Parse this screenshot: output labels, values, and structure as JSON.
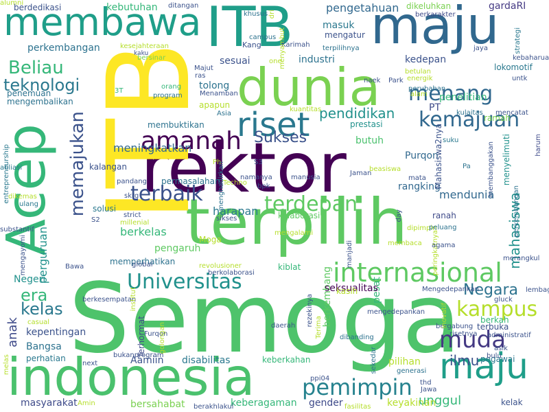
{
  "wordcloud": {
    "words": [
      {
        "text": "Semoga",
        "color": "#4ec36b"
      },
      {
        "text": "rektor",
        "color": "#440154"
      },
      {
        "text": "terpilih",
        "color": "#5ec962"
      },
      {
        "text": "ITB",
        "color": "#fde725"
      },
      {
        "text": "ITB",
        "color": "#1f9e89"
      },
      {
        "text": "Acep",
        "color": "#35b779"
      },
      {
        "text": "indonesia",
        "color": "#4ac16d"
      },
      {
        "text": "dunia",
        "color": "#7ad151"
      },
      {
        "text": "maju",
        "color": "#31688e"
      },
      {
        "text": "membawa",
        "color": "#1f9e89"
      },
      {
        "text": "maju",
        "color": "#1f9e89"
      },
      {
        "text": "riset",
        "color": "#2a788e"
      },
      {
        "text": "amanah",
        "color": "#440154"
      },
      {
        "text": "internasional",
        "color": "#5ec962"
      },
      {
        "text": "Universitas",
        "color": "#21918c"
      },
      {
        "text": "pemimpin",
        "color": "#26828e"
      },
      {
        "text": "muda",
        "color": "#443983"
      },
      {
        "text": "kemajuan",
        "color": "#31688e"
      },
      {
        "text": "menang",
        "color": "#31688e"
      },
      {
        "text": "terbaik",
        "color": "#3b528b"
      },
      {
        "text": "terdepan",
        "color": "#5ec962"
      },
      {
        "text": "kampus",
        "color": "#b5de2b"
      },
      {
        "text": "Beliau",
        "color": "#35b779"
      },
      {
        "text": "memajukan",
        "color": "#3b528b"
      },
      {
        "text": "Sukses",
        "color": "#3b528b"
      },
      {
        "text": "teknologi",
        "color": "#2a788e"
      },
      {
        "text": "pendidikan",
        "color": "#21918c"
      },
      {
        "text": "mahasiswa",
        "color": "#21918c"
      },
      {
        "text": "Negara",
        "color": "#2c728e"
      },
      {
        "text": "era",
        "color": "#35b779"
      },
      {
        "text": "kelas",
        "color": "#2a788e"
      },
      {
        "text": "anak",
        "color": "#3e4a89"
      },
      {
        "text": "ilmu",
        "color": "#3b528b"
      },
      {
        "text": "unggul",
        "color": "#35b779"
      },
      {
        "text": "pengetahuan",
        "color": "#31688e"
      },
      {
        "text": "meningkatkan",
        "color": "#31688e"
      },
      {
        "text": "harapan",
        "color": "#2a788e"
      },
      {
        "text": "berkelas",
        "color": "#35b779"
      },
      {
        "text": "perguruan",
        "color": "#21918c"
      },
      {
        "text": "mendunia",
        "color": "#31688e"
      },
      {
        "text": "rangking",
        "color": "#31688e"
      },
      {
        "text": "kedepan",
        "color": "#3b528b"
      },
      {
        "text": "penelitian",
        "color": "#35b779"
      },
      {
        "text": "industri",
        "color": "#2c728e"
      },
      {
        "text": "sesuai",
        "color": "#3b528b"
      },
      {
        "text": "Purqon",
        "color": "#31688e"
      },
      {
        "text": "butuh",
        "color": "#4ac16d"
      },
      {
        "text": "prestasi",
        "color": "#21918c"
      },
      {
        "text": "PT",
        "color": "#3e4a89"
      },
      {
        "text": "pengaruh",
        "color": "#5ec962"
      },
      {
        "text": "kepentingan",
        "color": "#3b528b"
      },
      {
        "text": "Bangsa",
        "color": "#2c728e"
      },
      {
        "text": "Negeri",
        "color": "#21918c"
      },
      {
        "text": "memperhatikan",
        "color": "#2c728e"
      },
      {
        "text": "berkembang",
        "color": "#5ec962"
      },
      {
        "text": "pesat",
        "color": "#35b779"
      },
      {
        "text": "seksualitas",
        "color": "#440154"
      },
      {
        "text": "Aamiin",
        "color": "#3b528b"
      },
      {
        "text": "disabilitas",
        "color": "#2a788e"
      },
      {
        "text": "keberkahan",
        "color": "#35b779"
      },
      {
        "text": "masyarakat",
        "color": "#3e4a89"
      },
      {
        "text": "keberagaman",
        "color": "#35b779"
      },
      {
        "text": "bersahabat",
        "color": "#7ad151"
      },
      {
        "text": "keyakinan",
        "color": "#b5de2b"
      },
      {
        "text": "gender",
        "color": "#3e4a89"
      },
      {
        "text": "pilihan",
        "color": "#b5de2b"
      },
      {
        "text": "perhatian",
        "color": "#2a788e"
      },
      {
        "text": "mengembalikan",
        "color": "#2c728e"
      },
      {
        "text": "penemuan",
        "color": "#2c728e"
      },
      {
        "text": "perkembangan",
        "color": "#2c728e"
      },
      {
        "text": "berdedikasi",
        "color": "#3b528b"
      },
      {
        "text": "kebutuhan",
        "color": "#35b779"
      },
      {
        "text": "gardaRI",
        "color": "#443983"
      },
      {
        "text": "tolong",
        "color": "#2c728e"
      },
      {
        "text": "Kang",
        "color": "#3b528b"
      },
      {
        "text": "masuk",
        "color": "#2a788e"
      },
      {
        "text": "mengatur",
        "color": "#3b528b"
      },
      {
        "text": "lokomotif",
        "color": "#2a788e"
      },
      {
        "text": "membuktikan",
        "color": "#2c728e"
      },
      {
        "text": "kalangan",
        "color": "#3b528b"
      },
      {
        "text": "permasalahan",
        "color": "#2c728e"
      },
      {
        "text": "solusi",
        "color": "#2a788e"
      },
      {
        "text": "kolaborasi",
        "color": "#5ec962"
      },
      {
        "text": "ranah",
        "color": "#3e4a89"
      },
      {
        "text": "kiblat",
        "color": "#35b779"
      },
      {
        "text": "kasih",
        "color": "#b5de2b"
      },
      {
        "text": "menyelimuti",
        "color": "#21918c"
      },
      {
        "text": "ramah",
        "color": "#7ad151"
      },
      {
        "text": "berkah",
        "color": "#35b779"
      },
      {
        "text": "terbuka",
        "color": "#3b528b"
      },
      {
        "text": "pegawai",
        "color": "#2a788e"
      },
      {
        "text": "kelak",
        "color": "#3b528b"
      },
      {
        "text": "apapun",
        "color": "#b5de2b"
      },
      {
        "text": "Moga",
        "color": "#b5de2b"
      },
      {
        "text": "Terhormat",
        "color": "#3e4a89"
      },
      {
        "text": "Mahasiswa2nya",
        "color": "#3b528b"
      },
      {
        "text": "ditangan",
        "color": "#3b528b"
      },
      {
        "text": "dikeluhkan",
        "color": "#7ad151"
      },
      {
        "text": "berkarakter",
        "color": "#3e4a89"
      },
      {
        "text": "khusus",
        "color": "#2c728e"
      },
      {
        "text": "campus",
        "color": "#2c728e"
      },
      {
        "text": "kesejahteraan",
        "color": "#b5de2b"
      },
      {
        "text": "kaku",
        "color": "#3b528b"
      },
      {
        "text": "bersinar",
        "color": "#7ad151"
      },
      {
        "text": "Karimah",
        "color": "#3b528b"
      },
      {
        "text": "terpilihnya",
        "color": "#2c728e"
      },
      {
        "text": "jaya",
        "color": "#3b528b"
      },
      {
        "text": "kebaharuan",
        "color": "#3b528b"
      },
      {
        "text": "strategi",
        "color": "#2a788e"
      },
      {
        "text": "betulan",
        "color": "#b5de2b"
      },
      {
        "text": "energik",
        "color": "#b5de2b"
      },
      {
        "text": "untk",
        "color": "#3b528b"
      },
      {
        "text": "perubahan",
        "color": "#2c728e"
      },
      {
        "text": "kulaitas",
        "color": "#2c728e"
      },
      {
        "text": "mencatat",
        "color": "#3b528b"
      },
      {
        "text": "suku",
        "color": "#2a788e"
      },
      {
        "text": "harum",
        "color": "#3e4a89"
      },
      {
        "text": "kuantitas",
        "color": "#b5de2b"
      },
      {
        "text": "Asia",
        "color": "#2c728e"
      },
      {
        "text": "orang",
        "color": "#35b779"
      },
      {
        "text": "program",
        "color": "#2c728e"
      },
      {
        "text": "Menamban",
        "color": "#3b528b"
      },
      {
        "text": "Majut",
        "color": "#3b528b"
      },
      {
        "text": "ras",
        "color": "#3b528b"
      },
      {
        "text": "3T",
        "color": "#35b779"
      },
      {
        "text": "one",
        "color": "#b5de2b"
      },
      {
        "text": "naek",
        "color": "#3b528b"
      },
      {
        "text": "Park",
        "color": "#3b528b"
      },
      {
        "text": "alam",
        "color": "#b5de2b"
      },
      {
        "text": "beasiswa",
        "color": "#b5de2b"
      },
      {
        "text": "Jaman",
        "color": "#3b528b"
      },
      {
        "text": "S3",
        "color": "#3b528b"
      },
      {
        "text": "Ph",
        "color": "#b5de2b"
      },
      {
        "text": "manusia",
        "color": "#3b528b"
      },
      {
        "text": "namanya",
        "color": "#3b528b"
      },
      {
        "text": "bpk",
        "color": "#3b528b"
      },
      {
        "text": "mata",
        "color": "#3b528b"
      },
      {
        "text": "Pa",
        "color": "#2c728e"
      },
      {
        "text": "membanggakan",
        "color": "#3b528b"
      },
      {
        "text": "perkembangan",
        "color": "#2c728e"
      },
      {
        "text": "afiliasi",
        "color": "#2a788e"
      },
      {
        "text": "entrepreneurship",
        "color": "#2a788e"
      },
      {
        "text": "dikemas",
        "color": "#b5de2b"
      },
      {
        "text": "ulang",
        "color": "#2a788e"
      },
      {
        "text": "substantif",
        "color": "#3b528b"
      },
      {
        "text": "pandang",
        "color": "#3b528b"
      },
      {
        "text": "skrg",
        "color": "#3b528b"
      },
      {
        "text": "menghadirkan",
        "color": "#2c728e"
      },
      {
        "text": "Techno",
        "color": "#b5de2b"
      },
      {
        "text": "S2",
        "color": "#3b528b"
      },
      {
        "text": "strict",
        "color": "#3b528b"
      },
      {
        "text": "millenial",
        "color": "#b5de2b"
      },
      {
        "text": "sikses",
        "color": "#3b528b"
      },
      {
        "text": "mengayomi",
        "color": "#3b528b"
      },
      {
        "text": "mengalami",
        "color": "#b5de2b"
      },
      {
        "text": "day",
        "color": "#3b528b"
      },
      {
        "text": "dipimpin",
        "color": "#b5de2b"
      },
      {
        "text": "peringkatnya",
        "color": "#b5de2b"
      },
      {
        "text": "peluang",
        "color": "#2c728e"
      },
      {
        "text": "membaca",
        "color": "#b5de2b"
      },
      {
        "text": "agama",
        "color": "#3b528b"
      },
      {
        "text": "manjadi",
        "color": "#3b528b"
      },
      {
        "text": "merangkul",
        "color": "#3b528b"
      },
      {
        "text": "Bawa",
        "color": "#3b528b"
      },
      {
        "text": "global",
        "color": "#3b528b"
      },
      {
        "text": "revolusioner",
        "color": "#b5de2b"
      },
      {
        "text": "berkolaborasi",
        "color": "#3b528b"
      },
      {
        "text": "rezekinya",
        "color": "#3b528b"
      },
      {
        "text": "Mengedepankan",
        "color": "#3b528b"
      },
      {
        "text": "lembaga",
        "color": "#3b528b"
      },
      {
        "text": "gluck",
        "color": "#3b528b"
      },
      {
        "text": "berkesempatan",
        "color": "#3b528b"
      },
      {
        "text": "institut",
        "color": "#b5de2b"
      },
      {
        "text": "casual",
        "color": "#b5de2b"
      },
      {
        "text": "mengedepankan",
        "color": "#3b528b"
      },
      {
        "text": "bergabung",
        "color": "#3b528b"
      },
      {
        "text": "risetnya",
        "color": "#3b528b"
      },
      {
        "text": "administratif",
        "color": "#3b528b"
      },
      {
        "text": "inovatif",
        "color": "#b5de2b"
      },
      {
        "text": "Terima",
        "color": "#b5de2b"
      },
      {
        "text": "dibanding",
        "color": "#2c728e"
      },
      {
        "text": "daerah",
        "color": "#3b528b"
      },
      {
        "text": "Furqon",
        "color": "#3b528b"
      },
      {
        "text": "golongan",
        "color": "#b5de2b"
      },
      {
        "text": "bukanprogram",
        "color": "#3b528b"
      },
      {
        "text": "next",
        "color": "#3b528b"
      },
      {
        "text": "melas",
        "color": "#b5de2b"
      },
      {
        "text": "sekedar",
        "color": "#2c728e"
      },
      {
        "text": "generasi",
        "color": "#2c728e"
      },
      {
        "text": "bulu",
        "color": "#3b528b"
      },
      {
        "text": "asik",
        "color": "#3b528b"
      },
      {
        "text": "ppi04",
        "color": "#3b528b"
      },
      {
        "text": "thd",
        "color": "#3b528b"
      },
      {
        "text": "Jawa",
        "color": "#3b528b"
      },
      {
        "text": "Amin",
        "color": "#b5de2b"
      },
      {
        "text": "berakhlakul",
        "color": "#3b528b"
      },
      {
        "text": "fasilitas",
        "color": "#b5de2b"
      },
      {
        "text": "dri",
        "color": "#b5de2b"
      },
      {
        "text": "menyambut",
        "color": "#b5de2b"
      },
      {
        "text": "alumni",
        "color": "#b5de2b"
      }
    ]
  }
}
